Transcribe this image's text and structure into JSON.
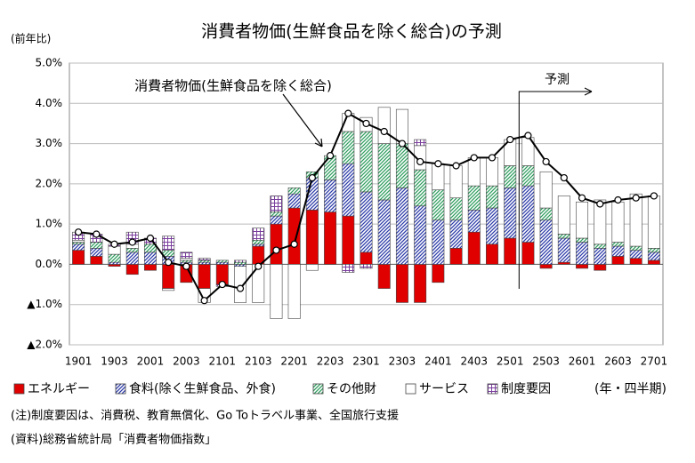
{
  "chart_data": {
    "type": "bar",
    "stacked": true,
    "title": "消費者物価(生鮮食品を除く総合)の予測",
    "y_unit": "(前年比)",
    "x_unit": "(年・四半期)",
    "forecast_label": "予測",
    "categories": [
      "1901",
      null,
      "1903",
      null,
      "2001",
      null,
      "2003",
      null,
      "2101",
      null,
      "2103",
      null,
      "2201",
      null,
      "2203",
      null,
      "2301",
      null,
      "2303",
      null,
      "2401",
      null,
      "2403",
      null,
      "2501",
      null,
      "2503",
      null,
      "2601",
      null,
      "2603",
      null,
      "2701"
    ],
    "ylim": [
      -2,
      5
    ],
    "yticks": [
      {
        "value": 5,
        "label": "5.0%"
      },
      {
        "value": 4,
        "label": "4.0%"
      },
      {
        "value": 3,
        "label": "3.0%"
      },
      {
        "value": 2,
        "label": "2.0%"
      },
      {
        "value": 1,
        "label": "1.0%"
      },
      {
        "value": 0,
        "label": "0.0%"
      },
      {
        "value": -1,
        "label": "▲1.0%"
      },
      {
        "value": -2,
        "label": "▲2.0%"
      }
    ],
    "grid": true,
    "series": [
      {
        "name": "エネルギー",
        "color": "#e00000",
        "fill_style": "solid",
        "values": [
          0.35,
          0.2,
          -0.05,
          -0.25,
          -0.15,
          -0.6,
          -0.45,
          -0.6,
          -0.5,
          0.0,
          0.45,
          1.0,
          1.4,
          1.35,
          1.3,
          1.2,
          0.3,
          -0.6,
          -0.95,
          -0.95,
          -0.45,
          0.4,
          0.8,
          0.5,
          0.65,
          0.55,
          -0.1,
          0.05,
          -0.1,
          -0.15,
          0.2,
          0.15,
          0.1
        ]
      },
      {
        "name": "食料(除く生鮮食品、外食)",
        "color": "#2b3aa8",
        "fill_style": "hatch",
        "values": [
          0.15,
          0.2,
          0.05,
          0.3,
          0.3,
          0.2,
          0.05,
          0.05,
          0.05,
          -0.05,
          0.05,
          0.2,
          0.35,
          0.8,
          0.8,
          1.3,
          1.5,
          1.6,
          1.9,
          1.45,
          1.1,
          0.7,
          0.55,
          0.9,
          1.25,
          1.4,
          1.1,
          0.6,
          0.55,
          0.4,
          0.25,
          0.2,
          0.2
        ]
      },
      {
        "name": "その他財",
        "color": "#2e9e5e",
        "fill_style": "hatch",
        "values": [
          0.05,
          0.15,
          0.2,
          0.1,
          0.2,
          0.15,
          0.05,
          0.05,
          0.05,
          0.05,
          0.1,
          0.1,
          0.15,
          0.15,
          0.6,
          0.8,
          1.5,
          1.4,
          1.1,
          0.9,
          0.75,
          0.55,
          0.6,
          0.55,
          0.55,
          0.5,
          0.3,
          0.1,
          0.1,
          0.1,
          0.1,
          0.1,
          0.1
        ]
      },
      {
        "name": "サービス",
        "color": "#ffffff",
        "fill_style": "solid",
        "values": [
          0.05,
          0.0,
          0.2,
          0.1,
          0.0,
          -0.05,
          0.05,
          -0.35,
          0.0,
          -0.9,
          -0.95,
          -1.35,
          -1.35,
          -0.15,
          0.0,
          0.45,
          0.35,
          0.9,
          0.85,
          0.6,
          0.65,
          0.8,
          0.7,
          0.7,
          0.65,
          0.7,
          0.9,
          0.95,
          0.9,
          1.1,
          1.0,
          1.3,
          1.3
        ]
      },
      {
        "name": "制度要因",
        "color": "#7b3f9e",
        "fill_style": "grid",
        "values": [
          0.2,
          0.2,
          0.05,
          0.3,
          0.15,
          0.35,
          0.15,
          0.05,
          -0.05,
          0.05,
          0.3,
          0.4,
          0.0,
          0.0,
          0.0,
          -0.2,
          -0.1,
          0.0,
          0.0,
          0.15,
          0.0,
          0,
          0,
          0,
          0,
          0,
          0,
          0,
          0,
          0,
          0,
          0,
          0
        ]
      }
    ],
    "line": {
      "name": "消費者物価(生鮮食品を除く総合)",
      "color": "#000000",
      "values": [
        0.8,
        0.75,
        0.5,
        0.55,
        0.65,
        0.05,
        -0.05,
        -0.9,
        -0.5,
        -0.6,
        -0.05,
        0.35,
        0.5,
        2.15,
        2.7,
        3.75,
        3.5,
        3.3,
        3.0,
        2.55,
        2.5,
        2.45,
        2.65,
        2.65,
        3.1,
        3.2,
        2.55,
        2.15,
        1.65,
        1.5,
        1.6,
        1.65,
        1.7
      ]
    },
    "notes": [
      "(注)制度要因は、消費税、教育無償化、Go Toトラベル事業、全国旅行支援",
      "(資料)総務省統計局「消費者物価指数」"
    ]
  }
}
